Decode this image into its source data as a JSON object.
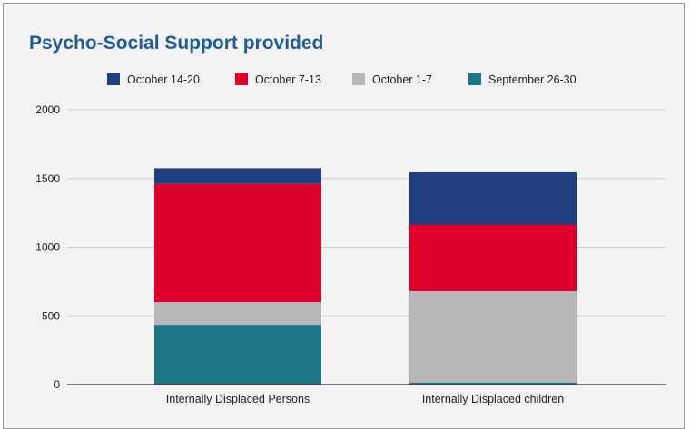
{
  "chart_data": {
    "type": "bar",
    "stacked": true,
    "title": "Psycho-Social Support provided",
    "categories": [
      "Internally Displaced Persons",
      "Internally Displaced children"
    ],
    "series": [
      {
        "name": "September 26-30",
        "color": "#1e7687",
        "values": [
          435,
          15
        ]
      },
      {
        "name": "October 1-7",
        "color": "#b7b7b7",
        "values": [
          165,
          665
        ]
      },
      {
        "name": "October 7-13",
        "color": "#e0002c",
        "values": [
          860,
          485
        ]
      },
      {
        "name": "October 14-20",
        "color": "#213f80",
        "values": [
          115,
          380
        ]
      }
    ],
    "legend_order": [
      "October 14-20",
      "October 7-13",
      "October 1-7",
      "September 26-30"
    ],
    "legend_position": "top",
    "ylim": [
      0,
      2000
    ],
    "yticks": [
      "0",
      "500",
      "1000",
      "1500",
      "2000"
    ],
    "grid": true
  }
}
